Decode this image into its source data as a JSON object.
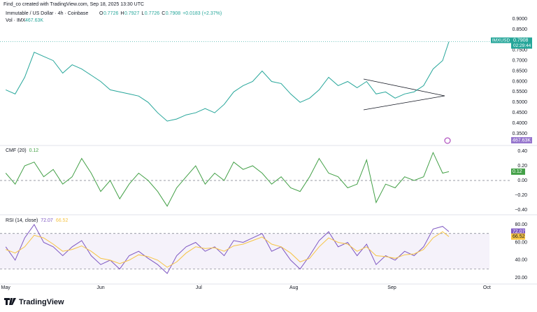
{
  "header": {
    "attribution": "Find_co created with TradingView.com, Sep 18, 2025 13:30 UTC",
    "symbol": "Immutable / US Dollar · 4h · Coinbase",
    "ohlc": [
      {
        "label": "O",
        "value": "0.7726"
      },
      {
        "label": "H",
        "value": "0.7927"
      },
      {
        "label": "L",
        "value": "0.7726"
      },
      {
        "label": "C",
        "value": "0.7908"
      }
    ],
    "change": "+0.0183 (+2.37%)",
    "volume_label": "Vol · IMX",
    "volume": "467.63K"
  },
  "chart_data": [
    {
      "type": "line",
      "pane": "price",
      "x": [
        0,
        3,
        6,
        9,
        12,
        15,
        18,
        21,
        24,
        27,
        30,
        33,
        36,
        39,
        42,
        45,
        48,
        51,
        54,
        57,
        60,
        63,
        66,
        69,
        72,
        75,
        78,
        81,
        84,
        87,
        90,
        93,
        96,
        99,
        102,
        105,
        108,
        111,
        114,
        117,
        120,
        123,
        126,
        129,
        132,
        135,
        138,
        140
      ],
      "series": [
        {
          "name": "IMXUSD",
          "color": "#26a69a",
          "values": [
            0.56,
            0.54,
            0.62,
            0.74,
            0.72,
            0.7,
            0.64,
            0.68,
            0.66,
            0.63,
            0.6,
            0.56,
            0.55,
            0.54,
            0.53,
            0.5,
            0.45,
            0.41,
            0.42,
            0.44,
            0.45,
            0.47,
            0.45,
            0.49,
            0.55,
            0.58,
            0.6,
            0.65,
            0.6,
            0.59,
            0.54,
            0.5,
            0.52,
            0.56,
            0.62,
            0.58,
            0.6,
            0.57,
            0.6,
            0.54,
            0.55,
            0.52,
            0.54,
            0.55,
            0.58,
            0.66,
            0.7,
            0.7908
          ]
        }
      ],
      "countdown": "02:29:44",
      "xlim": [
        -1.8,
        152.8
      ],
      "ylim": [
        0.303,
        0.9235
      ],
      "yticks": [
        {
          "value": 0.9,
          "label": "0.9000"
        },
        {
          "value": 0.85,
          "label": "0.8500"
        },
        {
          "value": 0.75,
          "label": "0.7500"
        },
        {
          "value": 0.7,
          "label": "0.7000"
        },
        {
          "value": 0.65,
          "label": "0.6500"
        },
        {
          "value": 0.6,
          "label": "0.6000"
        },
        {
          "value": 0.55,
          "label": "0.5500"
        },
        {
          "value": 0.5,
          "label": "0.5000"
        },
        {
          "value": 0.45,
          "label": "0.4500"
        },
        {
          "value": 0.4,
          "label": "0.4000"
        },
        {
          "value": 0.35,
          "label": "0.3500"
        }
      ]
    },
    {
      "type": "line",
      "pane": "cmf",
      "title": "CMF (20)",
      "x": [
        0,
        3,
        6,
        9,
        12,
        15,
        18,
        21,
        24,
        27,
        30,
        33,
        36,
        39,
        42,
        45,
        48,
        51,
        54,
        57,
        60,
        63,
        66,
        69,
        72,
        75,
        78,
        81,
        84,
        87,
        90,
        93,
        96,
        99,
        102,
        105,
        108,
        111,
        114,
        117,
        120,
        123,
        126,
        129,
        132,
        135,
        138,
        140
      ],
      "series": [
        {
          "name": "CMF",
          "color": "#43a047",
          "values": [
            0.1,
            -0.05,
            0.2,
            0.25,
            0.05,
            0.15,
            -0.05,
            0.05,
            0.3,
            0.1,
            -0.15,
            0.0,
            -0.25,
            -0.05,
            0.1,
            0.0,
            -0.15,
            -0.35,
            -0.1,
            0.05,
            0.2,
            -0.05,
            0.1,
            0.0,
            0.25,
            0.15,
            0.2,
            0.1,
            -0.05,
            0.05,
            -0.1,
            -0.15,
            0.05,
            0.3,
            0.1,
            0.05,
            -0.1,
            -0.05,
            0.28,
            -0.3,
            -0.05,
            -0.1,
            0.05,
            0.0,
            0.05,
            0.38,
            0.1,
            0.12
          ]
        }
      ],
      "xlim": [
        -1.8,
        152.8
      ],
      "ylim": [
        -0.448,
        0.457
      ],
      "yticks": [
        {
          "value": 0.4,
          "label": "0.40"
        },
        {
          "value": 0.2,
          "label": "0.20"
        },
        {
          "value": 0,
          "label": "0.00"
        },
        {
          "value": -0.2,
          "label": "−0.20"
        },
        {
          "value": -0.4,
          "label": "−0.40"
        }
      ]
    },
    {
      "type": "line",
      "pane": "rsi",
      "title": "RSI (14, close)",
      "x": [
        0,
        3,
        6,
        9,
        12,
        15,
        18,
        21,
        24,
        27,
        30,
        33,
        36,
        39,
        42,
        45,
        48,
        51,
        54,
        57,
        60,
        63,
        66,
        69,
        72,
        75,
        78,
        81,
        84,
        87,
        90,
        93,
        96,
        99,
        102,
        105,
        108,
        111,
        114,
        117,
        120,
        123,
        126,
        129,
        132,
        135,
        138,
        140
      ],
      "series": [
        {
          "name": "RSI",
          "color": "#7e57c2",
          "values": [
            55,
            40,
            65,
            80,
            60,
            55,
            45,
            55,
            62,
            45,
            35,
            40,
            30,
            45,
            50,
            42,
            35,
            25,
            45,
            55,
            60,
            50,
            55,
            45,
            62,
            60,
            65,
            70,
            50,
            55,
            40,
            30,
            45,
            62,
            72,
            55,
            60,
            45,
            58,
            35,
            45,
            40,
            50,
            45,
            55,
            75,
            78,
            72.07
          ]
        },
        {
          "name": "RSI MA",
          "color": "#f6c445",
          "values": [
            52,
            48,
            55,
            68,
            65,
            58,
            50,
            52,
            56,
            50,
            42,
            40,
            36,
            40,
            46,
            44,
            40,
            32,
            38,
            48,
            55,
            53,
            54,
            50,
            56,
            58,
            62,
            66,
            58,
            55,
            48,
            38,
            42,
            55,
            65,
            60,
            58,
            50,
            55,
            45,
            44,
            42,
            46,
            47,
            52,
            65,
            72,
            66.52
          ]
        }
      ],
      "band": [
        30,
        70
      ],
      "xlim": [
        -1.8,
        152.8
      ],
      "ylim": [
        13.9,
        88.7
      ],
      "yticks": [
        {
          "value": 80,
          "label": "80.00"
        },
        {
          "value": 60,
          "label": "60.00"
        },
        {
          "value": 40,
          "label": "40.00"
        },
        {
          "value": 20,
          "label": "20.00"
        }
      ],
      "xticks": [
        {
          "value": 0,
          "label": "May"
        },
        {
          "value": 30,
          "label": "Jun"
        },
        {
          "value": 61,
          "label": "Jul"
        },
        {
          "value": 91,
          "label": "Aug"
        },
        {
          "value": 122,
          "label": "Sep"
        },
        {
          "value": 152,
          "label": "Oct"
        }
      ]
    }
  ],
  "footer": {
    "brand": "TradingView"
  }
}
